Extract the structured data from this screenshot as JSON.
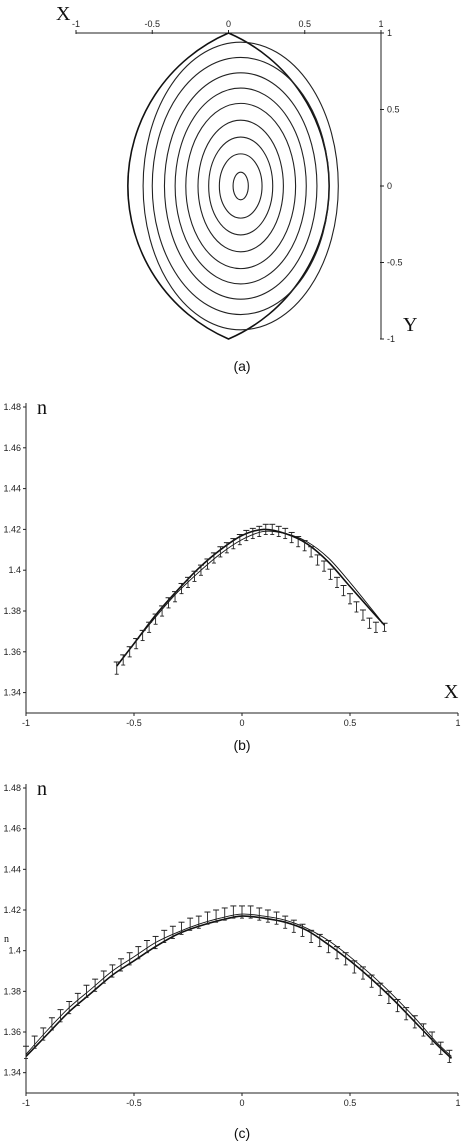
{
  "chart_data": [
    {
      "type": "contour",
      "caption": "(a)",
      "x_axis_label": "X",
      "y_axis_label": "Y",
      "x_ticks": [
        -1,
        -0.5,
        0,
        0.5,
        1
      ],
      "x_tick_labels": [
        "-1",
        "-0.5",
        "0",
        "0.5",
        "1"
      ],
      "y_ticks": [
        1,
        0.5,
        0,
        -0.5,
        -1
      ],
      "y_tick_labels": [
        "1",
        "0.5",
        "0",
        "-0.5",
        "-1"
      ],
      "xlim": [
        -1,
        1
      ],
      "ylim": [
        -1,
        1
      ],
      "boundary_half_width_at_center": 0.66,
      "contour_center": [
        0.08,
        0.0
      ],
      "contour_levels": [
        {
          "a": 0.64,
          "b": 0.94
        },
        {
          "a": 0.58,
          "b": 0.84
        },
        {
          "a": 0.5,
          "b": 0.74
        },
        {
          "a": 0.43,
          "b": 0.64
        },
        {
          "a": 0.36,
          "b": 0.54
        },
        {
          "a": 0.28,
          "b": 0.43
        },
        {
          "a": 0.21,
          "b": 0.32
        },
        {
          "a": 0.14,
          "b": 0.21
        },
        {
          "a": 0.05,
          "b": 0.09
        }
      ]
    },
    {
      "type": "line",
      "caption": "(b)",
      "x_axis_label": "X",
      "y_axis_label": "n",
      "xlim": [
        -1,
        1
      ],
      "ylim": [
        1.33,
        1.48
      ],
      "x_ticks": [
        -1,
        -0.5,
        0,
        0.5,
        1
      ],
      "x_tick_labels": [
        "-1",
        "-0.5",
        "0",
        "0.5",
        "1"
      ],
      "y_ticks": [
        1.34,
        1.36,
        1.38,
        1.4,
        1.42,
        1.44,
        1.46,
        1.48
      ],
      "y_tick_labels": [
        "1.34",
        "1.36",
        "1.38",
        "1.4",
        "1.42",
        "1.44",
        "1.46",
        "1.48"
      ],
      "series": [
        {
          "type": "curve",
          "x": [
            -0.58,
            -0.5,
            -0.4,
            -0.3,
            -0.2,
            -0.1,
            0.0,
            0.1,
            0.2,
            0.3,
            0.4,
            0.5,
            0.6,
            0.66
          ],
          "y": [
            1.353,
            1.364,
            1.378,
            1.39,
            1.401,
            1.41,
            1.417,
            1.42,
            1.418,
            1.413,
            1.404,
            1.392,
            1.38,
            1.373
          ]
        },
        {
          "type": "curve",
          "x": [
            -0.58,
            -0.5,
            -0.4,
            -0.3,
            -0.2,
            -0.1,
            0.0,
            0.1,
            0.2,
            0.3,
            0.4,
            0.5,
            0.6,
            0.66
          ],
          "y": [
            1.353,
            1.364,
            1.377,
            1.389,
            1.399,
            1.408,
            1.415,
            1.419,
            1.418,
            1.414,
            1.406,
            1.394,
            1.381,
            1.373
          ]
        },
        {
          "type": "errorbars",
          "x": [
            -0.58,
            -0.55,
            -0.52,
            -0.49,
            -0.46,
            -0.43,
            -0.4,
            -0.37,
            -0.34,
            -0.31,
            -0.28,
            -0.25,
            -0.22,
            -0.19,
            -0.16,
            -0.13,
            -0.1,
            -0.07,
            -0.04,
            -0.01,
            0.02,
            0.05,
            0.08,
            0.11,
            0.14,
            0.17,
            0.2,
            0.23,
            0.26,
            0.29,
            0.32,
            0.35,
            0.38,
            0.41,
            0.44,
            0.47,
            0.5,
            0.53,
            0.56,
            0.59,
            0.62,
            0.66
          ],
          "y": [
            1.352,
            1.356,
            1.36,
            1.364,
            1.368,
            1.372,
            1.376,
            1.38,
            1.384,
            1.387,
            1.391,
            1.394,
            1.397,
            1.4,
            1.403,
            1.406,
            1.409,
            1.411,
            1.413,
            1.415,
            1.417,
            1.418,
            1.419,
            1.42,
            1.42,
            1.419,
            1.418,
            1.416,
            1.414,
            1.412,
            1.409,
            1.405,
            1.402,
            1.398,
            1.394,
            1.39,
            1.386,
            1.382,
            1.378,
            1.374,
            1.372,
            1.372
          ],
          "err": [
            0.003,
            0.0025,
            0.0025,
            0.0025,
            0.0025,
            0.0025,
            0.0025,
            0.0025,
            0.0025,
            0.0025,
            0.0025,
            0.0025,
            0.0025,
            0.0025,
            0.0025,
            0.0025,
            0.0025,
            0.0025,
            0.0025,
            0.0025,
            0.0025,
            0.0025,
            0.0025,
            0.0025,
            0.0025,
            0.0025,
            0.0025,
            0.0025,
            0.0025,
            0.0025,
            0.0025,
            0.0025,
            0.0025,
            0.0025,
            0.0025,
            0.0025,
            0.0025,
            0.0025,
            0.0025,
            0.0025,
            0.0025,
            0.002
          ]
        }
      ]
    },
    {
      "type": "line",
      "caption": "(c)",
      "x_axis_label": "",
      "y_axis_label": "n",
      "y_axis_label_small": "n",
      "xlim": [
        -1,
        1
      ],
      "ylim": [
        1.33,
        1.48
      ],
      "x_ticks": [
        -1,
        -0.5,
        0,
        0.5,
        1
      ],
      "x_tick_labels": [
        "-1",
        "-0.5",
        "0",
        "0.5",
        "1"
      ],
      "y_ticks": [
        1.34,
        1.36,
        1.38,
        1.4,
        1.42,
        1.44,
        1.46,
        1.48
      ],
      "y_tick_labels": [
        "1.34",
        "1.36",
        "1.38",
        "1.4",
        "1.42",
        "1.44",
        "1.46",
        "1.48"
      ],
      "series": [
        {
          "type": "curve",
          "x": [
            -1.0,
            -0.9,
            -0.8,
            -0.7,
            -0.6,
            -0.5,
            -0.4,
            -0.3,
            -0.2,
            -0.1,
            0.0,
            0.1,
            0.2,
            0.3,
            0.4,
            0.5,
            0.6,
            0.7,
            0.8,
            0.9,
            0.97
          ],
          "y": [
            1.348,
            1.359,
            1.37,
            1.379,
            1.388,
            1.395,
            1.402,
            1.408,
            1.412,
            1.415,
            1.417,
            1.416,
            1.414,
            1.41,
            1.403,
            1.395,
            1.386,
            1.376,
            1.365,
            1.354,
            1.347
          ]
        },
        {
          "type": "curve",
          "x": [
            -1.0,
            -0.9,
            -0.8,
            -0.7,
            -0.6,
            -0.5,
            -0.4,
            -0.3,
            -0.2,
            -0.1,
            0.0,
            0.1,
            0.2,
            0.3,
            0.4,
            0.5,
            0.6,
            0.7,
            0.8,
            0.9,
            0.97
          ],
          "y": [
            1.349,
            1.361,
            1.372,
            1.381,
            1.39,
            1.397,
            1.404,
            1.409,
            1.413,
            1.416,
            1.418,
            1.417,
            1.415,
            1.411,
            1.405,
            1.397,
            1.388,
            1.378,
            1.367,
            1.355,
            1.348
          ]
        },
        {
          "type": "errorbars",
          "x": [
            -1.0,
            -0.96,
            -0.92,
            -0.88,
            -0.84,
            -0.8,
            -0.76,
            -0.72,
            -0.68,
            -0.64,
            -0.6,
            -0.56,
            -0.52,
            -0.48,
            -0.44,
            -0.4,
            -0.36,
            -0.32,
            -0.28,
            -0.24,
            -0.2,
            -0.16,
            -0.12,
            -0.08,
            -0.04,
            0.0,
            0.04,
            0.08,
            0.12,
            0.16,
            0.2,
            0.24,
            0.28,
            0.32,
            0.36,
            0.4,
            0.44,
            0.48,
            0.52,
            0.56,
            0.6,
            0.64,
            0.68,
            0.72,
            0.76,
            0.8,
            0.84,
            0.88,
            0.92,
            0.96
          ],
          "y": [
            1.35,
            1.355,
            1.359,
            1.364,
            1.368,
            1.372,
            1.376,
            1.38,
            1.383,
            1.387,
            1.39,
            1.393,
            1.396,
            1.399,
            1.402,
            1.404,
            1.407,
            1.409,
            1.411,
            1.413,
            1.414,
            1.416,
            1.417,
            1.418,
            1.419,
            1.419,
            1.419,
            1.418,
            1.417,
            1.416,
            1.414,
            1.412,
            1.41,
            1.407,
            1.405,
            1.402,
            1.399,
            1.396,
            1.392,
            1.389,
            1.385,
            1.381,
            1.377,
            1.373,
            1.369,
            1.365,
            1.361,
            1.357,
            1.352,
            1.348
          ],
          "err": [
            0.003,
            0.003,
            0.003,
            0.003,
            0.003,
            0.003,
            0.003,
            0.003,
            0.003,
            0.003,
            0.003,
            0.003,
            0.003,
            0.003,
            0.003,
            0.003,
            0.003,
            0.003,
            0.003,
            0.003,
            0.003,
            0.003,
            0.003,
            0.003,
            0.003,
            0.003,
            0.003,
            0.003,
            0.003,
            0.003,
            0.003,
            0.003,
            0.003,
            0.003,
            0.003,
            0.003,
            0.003,
            0.003,
            0.003,
            0.003,
            0.003,
            0.003,
            0.003,
            0.003,
            0.003,
            0.003,
            0.003,
            0.003,
            0.003,
            0.003
          ]
        }
      ]
    }
  ]
}
